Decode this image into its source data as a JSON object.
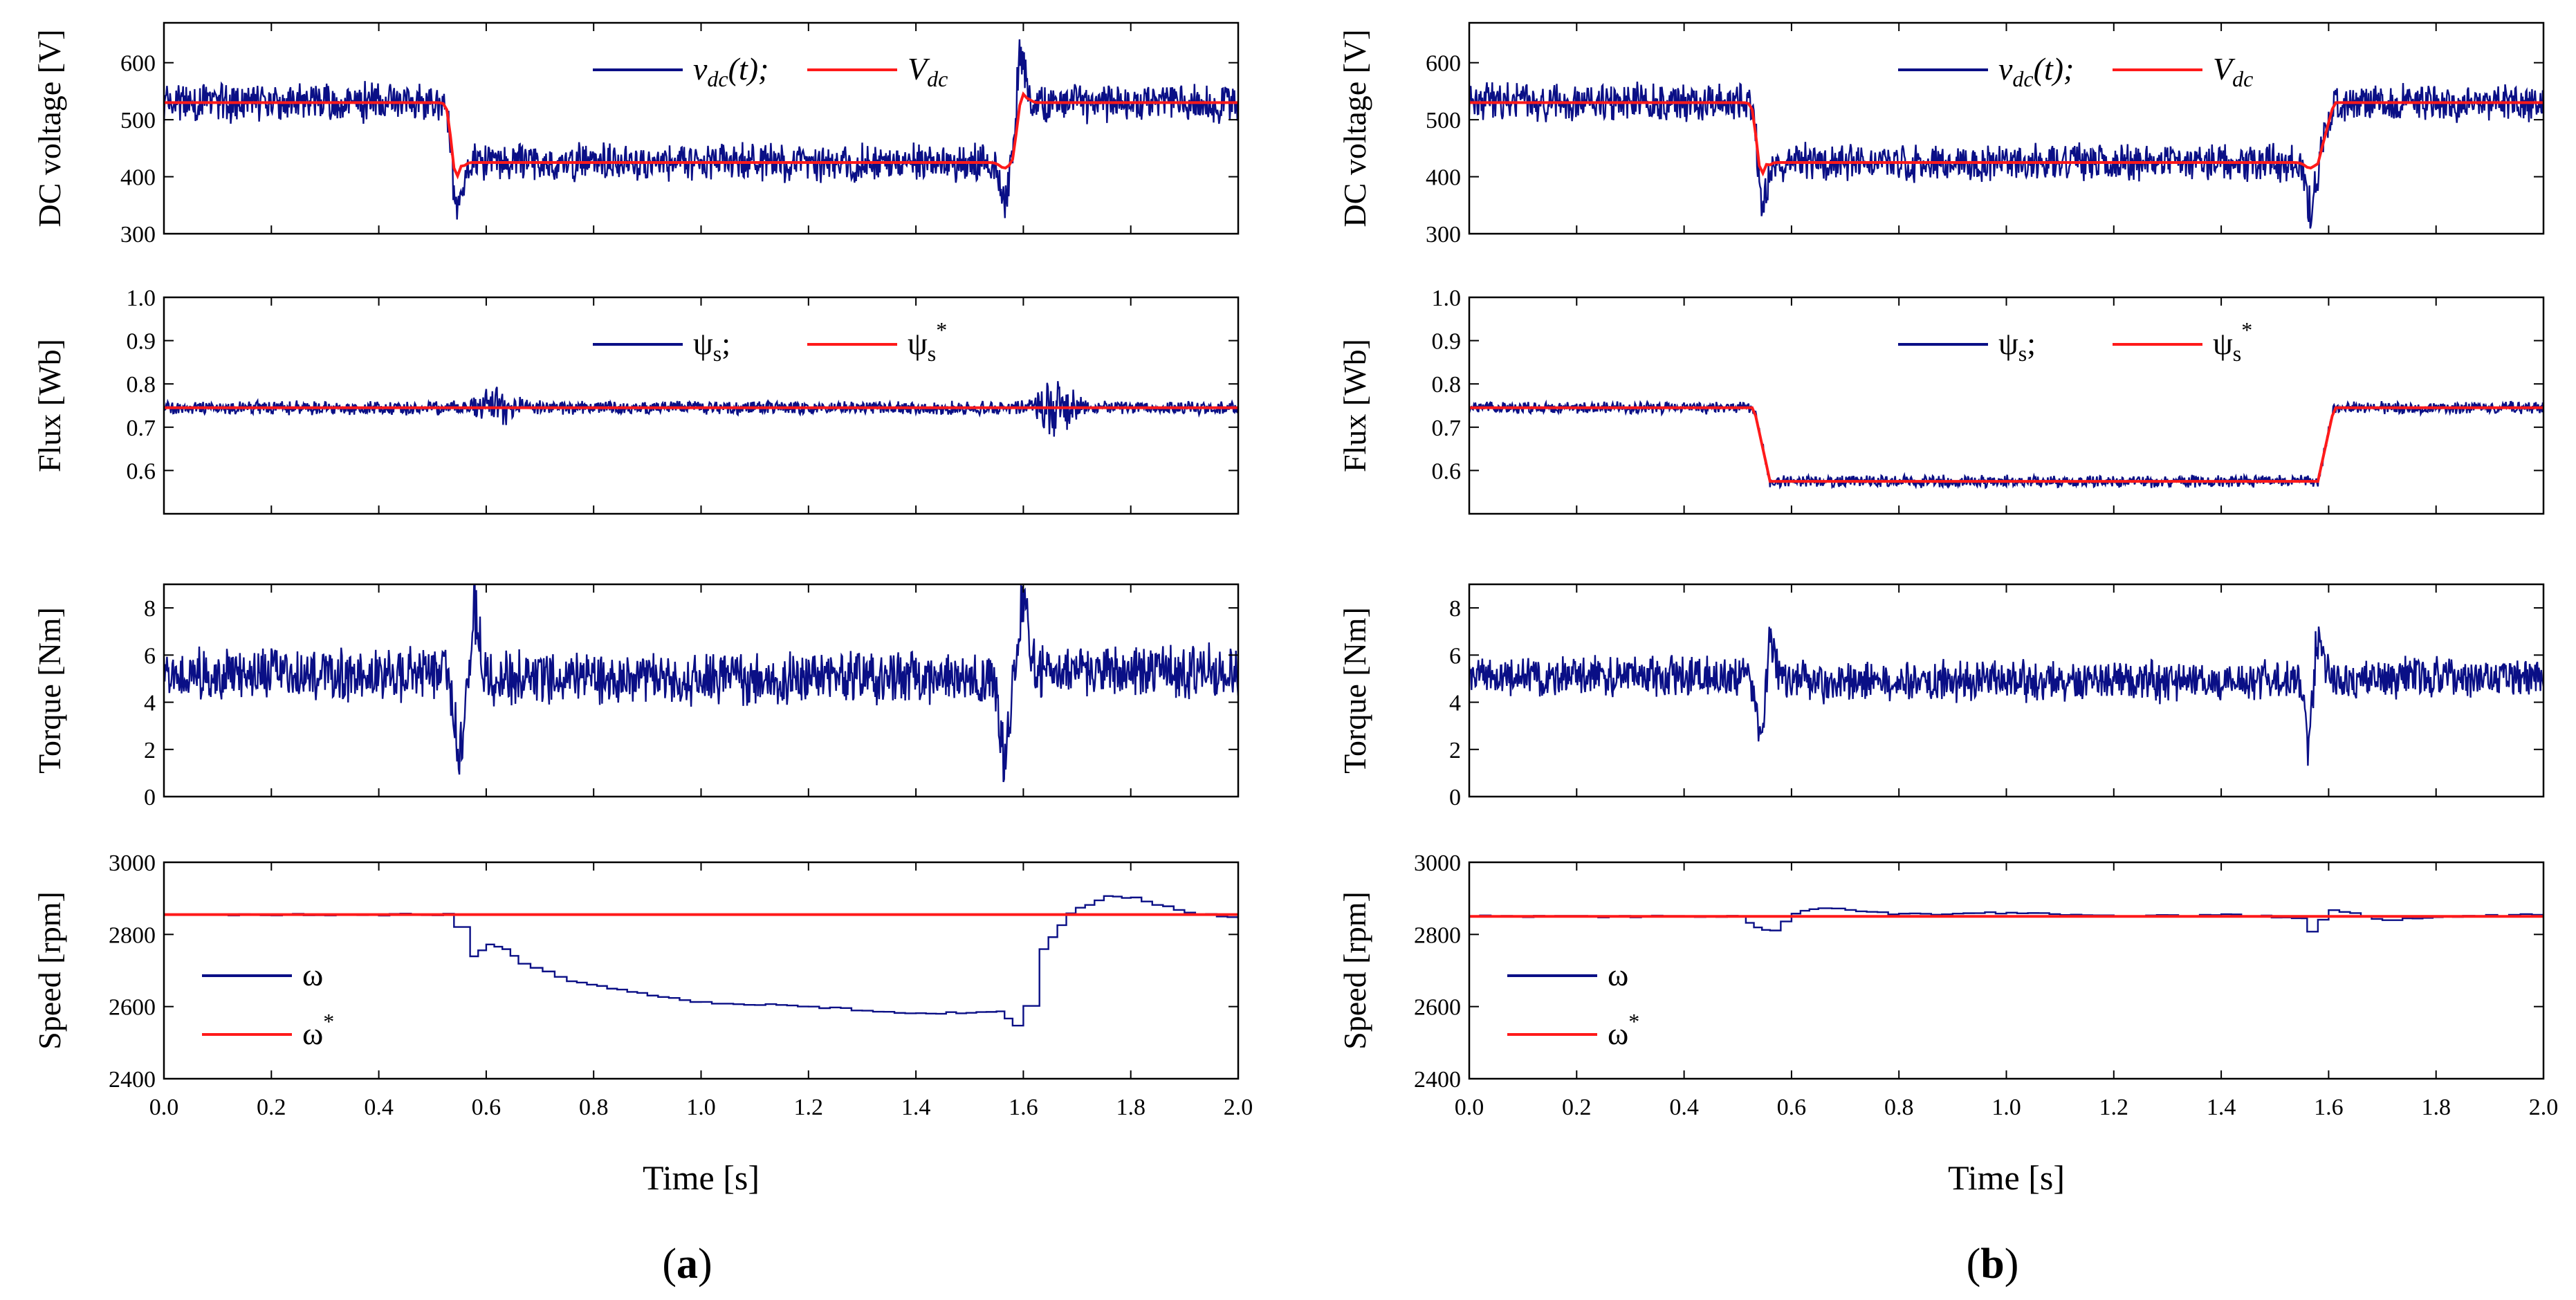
{
  "figure": {
    "panel_labels": [
      "a",
      "b"
    ],
    "colors": {
      "signal": "#0a0f86",
      "reference": "#ff1a1a",
      "axis": "#000000"
    }
  },
  "chart_data": [
    {
      "type": "line",
      "panel": "a",
      "time_range": [
        0,
        2.0
      ],
      "step_time": 0.53,
      "return_time": 1.58,
      "xlabel": "Time [s]",
      "xticks": [
        "0.0",
        "0.2",
        "0.4",
        "0.6",
        "0.8",
        "1.0",
        "1.2",
        "1.4",
        "1.6",
        "1.8",
        "2.0"
      ],
      "subplots": [
        {
          "id": "dc",
          "ylabel": "DC voltage [V]",
          "ylim": [
            300,
            670
          ],
          "yticks": [
            "300",
            "400",
            "500",
            "600"
          ],
          "legend": [
            {
              "prefix": "v",
              "sub": "dc",
              "suffix": "(t);",
              "style": "italic",
              "color": "signal"
            },
            {
              "prefix": "V",
              "sub": "dc",
              "style": "italic",
              "color": "reference"
            }
          ],
          "series": [
            {
              "role": "signal",
              "base": [
                530,
                425,
                530
              ],
              "ripple": 38,
              "dips": [
                {
                  "t": 0.545,
                  "d": -170
                },
                {
                  "t": 1.565,
                  "d": -90
                },
                {
                  "t": 1.595,
                  "d": 160
                }
              ]
            },
            {
              "role": "reference",
              "base": [
                530,
                425,
                530
              ],
              "settle": [
                {
                  "t": 0.545,
                  "v": 400
                },
                {
                  "t": 1.565,
                  "v": 415
                },
                {
                  "t": 1.6,
                  "v": 545
                }
              ]
            }
          ]
        },
        {
          "id": "flux",
          "ylabel": "Flux [Wb]",
          "ylim": [
            0.5,
            1.0
          ],
          "yticks": [
            "0.6",
            "0.7",
            "0.8",
            "0.9",
            "1.0"
          ],
          "legend": [
            {
              "prefix": "ψ",
              "sub": "s",
              "suffix": ";",
              "color": "signal"
            },
            {
              "prefix": "ψ",
              "sub": "s",
              "sup": "*",
              "color": "reference"
            }
          ],
          "series": [
            {
              "role": "signal",
              "base": [
                0.745,
                0.745,
                0.745
              ],
              "ripple": 0.018,
              "bumps": [
                {
                  "t": 0.62,
                  "d": 0.04
                },
                {
                  "t": 1.66,
                  "d": 0.06
                }
              ]
            },
            {
              "role": "reference",
              "base": [
                0.745,
                0.745,
                0.745
              ]
            }
          ]
        },
        {
          "id": "torque",
          "ylabel": "Torque [Nm]",
          "ylim": [
            0,
            9
          ],
          "yticks": [
            "0",
            "2",
            "4",
            "6",
            "8"
          ],
          "series": [
            {
              "role": "signal",
              "base": [
                5.2,
                5.0,
                5.3
              ],
              "ripple": 1.3,
              "dips": [
                {
                  "t": 0.55,
                  "d": -4
                },
                {
                  "t": 0.58,
                  "d": 3.5
                },
                {
                  "t": 1.565,
                  "d": -4
                },
                {
                  "t": 1.6,
                  "d": 3.8
                }
              ]
            }
          ]
        },
        {
          "id": "speed",
          "ylabel": "Speed [rpm]",
          "ylim": [
            2400,
            3000
          ],
          "yticks": [
            "2400",
            "2600",
            "2800",
            "3000"
          ],
          "legend": [
            {
              "prefix": "ω",
              "color": "signal"
            },
            {
              "prefix": "ω",
              "sup": "*",
              "color": "reference"
            }
          ],
          "series": [
            {
              "role": "signal",
              "points": [
                [
                  0,
                  2855
                ],
                [
                  0.52,
                  2855
                ],
                [
                  0.54,
                  2820
                ],
                [
                  0.57,
                  2740
                ],
                [
                  0.6,
                  2770
                ],
                [
                  0.63,
                  2760
                ],
                [
                  0.66,
                  2720
                ],
                [
                  0.75,
                  2670
                ],
                [
                  0.9,
                  2630
                ],
                [
                  1.0,
                  2610
                ],
                [
                  1.2,
                  2600
                ],
                [
                  1.4,
                  2580
                ],
                [
                  1.55,
                  2585
                ],
                [
                  1.58,
                  2550
                ],
                [
                  1.6,
                  2600
                ],
                [
                  1.63,
                  2760
                ],
                [
                  1.68,
                  2860
                ],
                [
                  1.75,
                  2905
                ],
                [
                  1.8,
                  2900
                ],
                [
                  1.9,
                  2860
                ],
                [
                  2.0,
                  2845
                ]
              ]
            },
            {
              "role": "reference",
              "points": [
                [
                  0,
                  2855
                ],
                [
                  2.0,
                  2855
                ]
              ]
            }
          ]
        }
      ]
    },
    {
      "type": "line",
      "panel": "b",
      "time_range": [
        0,
        2.0
      ],
      "step_time": 0.53,
      "return_time": 1.58,
      "xlabel": "Time [s]",
      "xticks": [
        "0.0",
        "0.2",
        "0.4",
        "0.6",
        "0.8",
        "1.0",
        "1.2",
        "1.4",
        "1.6",
        "1.8",
        "2.0"
      ],
      "subplots": [
        {
          "id": "dc",
          "ylabel": "DC voltage [V]",
          "ylim": [
            300,
            670
          ],
          "yticks": [
            "300",
            "400",
            "500",
            "600"
          ],
          "legend": [
            {
              "prefix": "v",
              "sub": "dc",
              "suffix": "(t);",
              "style": "italic",
              "color": "signal"
            },
            {
              "prefix": "V",
              "sub": "dc",
              "style": "italic",
              "color": "reference"
            }
          ],
          "series": [
            {
              "role": "signal",
              "base": [
                530,
                425,
                530
              ],
              "ripple": 38,
              "dips": [
                {
                  "t": 0.545,
                  "d": -140
                },
                {
                  "t": 1.565,
                  "d": -90
                }
              ]
            },
            {
              "role": "reference",
              "base": [
                530,
                425,
                530
              ],
              "settle": [
                {
                  "t": 0.545,
                  "v": 405
                },
                {
                  "t": 1.565,
                  "v": 415
                }
              ]
            }
          ]
        },
        {
          "id": "flux",
          "ylabel": "Flux [Wb]",
          "ylim": [
            0.5,
            1.0
          ],
          "yticks": [
            "0.6",
            "0.7",
            "0.8",
            "0.9",
            "1.0"
          ],
          "legend": [
            {
              "prefix": "ψ",
              "sub": "s",
              "suffix": ";",
              "color": "signal"
            },
            {
              "prefix": "ψ",
              "sub": "s",
              "sup": "*",
              "color": "reference"
            }
          ],
          "series": [
            {
              "role": "signal",
              "base": [
                0.745,
                0.575,
                0.745
              ],
              "ripple": 0.016
            },
            {
              "role": "reference",
              "base": [
                0.745,
                0.575,
                0.745
              ]
            }
          ]
        },
        {
          "id": "torque",
          "ylabel": "Torque [Nm]",
          "ylim": [
            0,
            9
          ],
          "yticks": [
            "0",
            "2",
            "4",
            "6",
            "8"
          ],
          "series": [
            {
              "role": "signal",
              "base": [
                5.1,
                4.9,
                5.0
              ],
              "ripple": 1.0,
              "dips": [
                {
                  "t": 0.545,
                  "d": -3
                },
                {
                  "t": 0.56,
                  "d": 3
                },
                {
                  "t": 1.565,
                  "d": -3.5
                },
                {
                  "t": 1.58,
                  "d": 3.2
                }
              ]
            }
          ]
        },
        {
          "id": "speed",
          "ylabel": "Speed [rpm]",
          "ylim": [
            2400,
            3000
          ],
          "yticks": [
            "2400",
            "2600",
            "2800",
            "3000"
          ],
          "legend": [
            {
              "prefix": "ω",
              "color": "signal"
            },
            {
              "prefix": "ω",
              "sup": "*",
              "color": "reference"
            }
          ],
          "series": [
            {
              "role": "signal",
              "points": [
                [
                  0,
                  2850
                ],
                [
                  0.5,
                  2850
                ],
                [
                  0.53,
                  2820
                ],
                [
                  0.56,
                  2810
                ],
                [
                  0.6,
                  2860
                ],
                [
                  0.65,
                  2875
                ],
                [
                  0.7,
                  2870
                ],
                [
                  0.8,
                  2855
                ],
                [
                  1.0,
                  2860
                ],
                [
                  1.2,
                  2850
                ],
                [
                  1.4,
                  2855
                ],
                [
                  1.55,
                  2845
                ],
                [
                  1.56,
                  2810
                ],
                [
                  1.6,
                  2870
                ],
                [
                  1.7,
                  2840
                ],
                [
                  1.85,
                  2850
                ],
                [
                  2.0,
                  2855
                ]
              ]
            },
            {
              "role": "reference",
              "points": [
                [
                  0,
                  2850
                ],
                [
                  2.0,
                  2850
                ]
              ]
            }
          ]
        }
      ]
    }
  ]
}
